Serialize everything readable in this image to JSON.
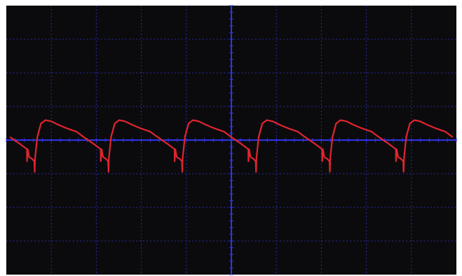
{
  "colors": {
    "background": "#0b0b0d",
    "grid": "#2a2aa8",
    "axis": "#2f34e6",
    "trace": "#e0252e",
    "frame": "#ffffff"
  },
  "grid": {
    "divisions_x": 10,
    "divisions_y": 8,
    "minor_ticks": 5
  },
  "trace": {
    "cycles": 6,
    "samples": [
      [
        0.0,
        0.28
      ],
      [
        0.1,
        0.1
      ],
      [
        0.22,
        -0.1
      ],
      [
        0.33,
        -0.3
      ],
      [
        0.331,
        -0.7
      ],
      [
        0.34,
        -0.3
      ],
      [
        0.36,
        -0.56
      ],
      [
        0.4,
        -0.62
      ],
      [
        0.43,
        -0.7
      ],
      [
        0.435,
        -1.05
      ],
      [
        0.44,
        -0.6
      ],
      [
        0.47,
        0.1
      ],
      [
        0.52,
        0.55
      ],
      [
        0.58,
        0.66
      ],
      [
        0.66,
        0.62
      ],
      [
        0.76,
        0.5
      ],
      [
        0.88,
        0.38
      ],
      [
        1.0,
        0.28
      ]
    ]
  }
}
